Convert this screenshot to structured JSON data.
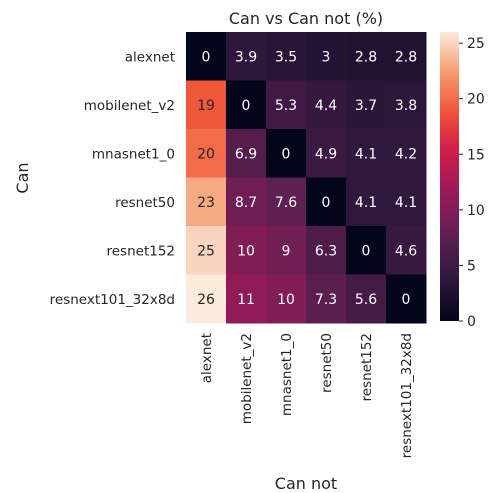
{
  "chart_data": {
    "type": "heatmap",
    "title": "Can vs Can not (%)",
    "xlabel": "Can not",
    "ylabel": "Can",
    "rows": [
      "alexnet",
      "mobilenet_v2",
      "mnasnet1_0",
      "resnet50",
      "resnet152",
      "resnext101_32x8d"
    ],
    "columns": [
      "alexnet",
      "mobilenet_v2",
      "mnasnet1_0",
      "resnet50",
      "resnet152",
      "resnext101_32x8d"
    ],
    "values": [
      [
        0,
        3.9,
        3.5,
        3,
        2.8,
        2.8
      ],
      [
        19,
        0,
        5.3,
        4.4,
        3.7,
        3.8
      ],
      [
        20,
        6.9,
        0,
        4.9,
        4.1,
        4.2
      ],
      [
        23,
        8.7,
        7.6,
        0,
        4.1,
        4.1
      ],
      [
        25,
        10,
        9,
        6.3,
        0,
        4.6
      ],
      [
        26,
        11,
        10,
        7.3,
        5.6,
        0
      ]
    ],
    "colorbar": {
      "min": 0,
      "max": 26,
      "ticks": [
        0,
        5,
        10,
        15,
        20,
        25
      ]
    },
    "colormap": "rocket"
  }
}
